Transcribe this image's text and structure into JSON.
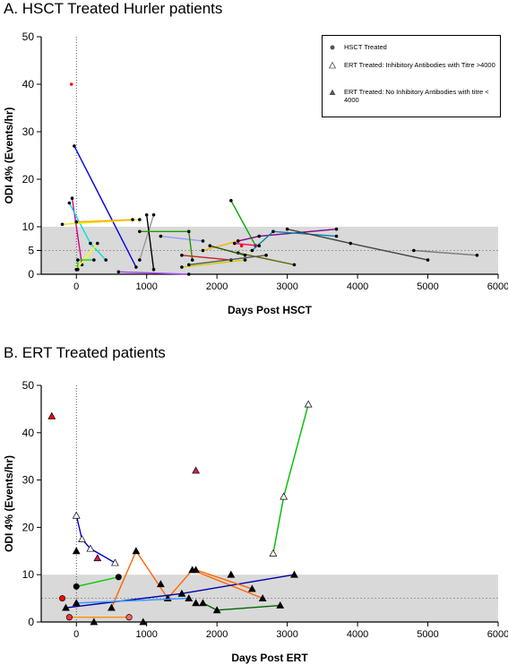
{
  "chart_data": [
    {
      "panel": "A",
      "type": "scatter",
      "title": "A. HSCT Treated Hurler patients",
      "xlabel": "Days Post HSCT",
      "ylabel": "ODI 4% (Events/hr)",
      "xlim": [
        -500,
        6000
      ],
      "ylim": [
        0,
        50
      ],
      "xticks": [
        0,
        1000,
        2000,
        3000,
        4000,
        5000,
        6000
      ],
      "yticks": [
        0,
        5,
        10,
        20,
        30,
        40,
        50
      ],
      "normal_band": [
        0,
        10
      ],
      "reference_line_y": 5,
      "vertical_reference_x": 0,
      "legend": [
        "HSCT Treated",
        "ERT Treated:  Inhibitory Antibodies with Titre >4000",
        "ERT Treated: No Inhibitory Antibodies with titre < 4000"
      ],
      "series": [
        {
          "color": "#0000dd",
          "points": [
            [
              -30,
              27
            ],
            [
              850,
              1.5
            ]
          ]
        },
        {
          "color": "#dd0088",
          "points": [
            [
              -60,
              16
            ],
            [
              80,
              2
            ]
          ]
        },
        {
          "color": "#00e0e0",
          "points": [
            [
              -100,
              15
            ],
            [
              200,
              6.5
            ],
            [
              420,
              3
            ]
          ]
        },
        {
          "color": "#eeee00",
          "points": [
            [
              -200,
              10.5
            ],
            [
              900,
              11.5
            ]
          ]
        },
        {
          "color": "#ffa500",
          "points": [
            [
              0,
              11
            ],
            [
              800,
              11.5
            ]
          ]
        },
        {
          "color": "#ffff00",
          "points": [
            [
              0,
              1
            ],
            [
              300,
              6.5
            ]
          ]
        },
        {
          "color": "#aa44ff",
          "points": [
            [
              600,
              0.5
            ],
            [
              1600,
              0
            ]
          ]
        },
        {
          "color": "#00dd00",
          "points": [
            [
              20,
              1
            ],
            [
              20,
              3
            ],
            [
              250,
              3
            ]
          ]
        },
        {
          "color": "#999999",
          "points": [
            [
              900,
              3
            ],
            [
              1100,
              12.5
            ]
          ]
        },
        {
          "color": "#000000",
          "points": [
            [
              1000,
              12.5
            ],
            [
              1100,
              1
            ]
          ]
        },
        {
          "color": "#cccc00",
          "points": [
            [
              1500,
              1.5
            ],
            [
              2400,
              3
            ]
          ]
        },
        {
          "color": "#9999ff",
          "points": [
            [
              1200,
              8
            ],
            [
              1800,
              7
            ]
          ]
        },
        {
          "color": "#1e9900",
          "points": [
            [
              900,
              9
            ],
            [
              1600,
              9
            ],
            [
              1650,
              3
            ]
          ]
        },
        {
          "color": "#cc2222",
          "points": [
            [
              1500,
              4
            ],
            [
              2200,
              3
            ]
          ]
        },
        {
          "color": "#00aa00",
          "points": [
            [
              2200,
              15.5
            ],
            [
              2550,
              6
            ]
          ]
        },
        {
          "color": "#880088",
          "points": [
            [
              2300,
              7
            ],
            [
              2600,
              8
            ],
            [
              3700,
              9.5
            ]
          ]
        },
        {
          "color": "#0088aa",
          "points": [
            [
              2500,
              5
            ],
            [
              2800,
              9
            ],
            [
              3700,
              8
            ]
          ]
        },
        {
          "color": "#ffaa00",
          "points": [
            [
              1800,
              5
            ],
            [
              2300,
              7
            ]
          ]
        },
        {
          "color": "#ff0066",
          "points": [
            [
              2250,
              6.5
            ],
            [
              2600,
              6
            ]
          ]
        },
        {
          "color": "#444444",
          "points": [
            [
              3000,
              9.5
            ],
            [
              3900,
              6.5
            ],
            [
              5000,
              3
            ]
          ]
        },
        {
          "color": "#777777",
          "points": [
            [
              4800,
              5
            ],
            [
              5700,
              4
            ]
          ]
        },
        {
          "color": "#666600",
          "points": [
            [
              2300,
              4.5
            ],
            [
              3100,
              2
            ]
          ]
        },
        {
          "color": "#555555",
          "points": [
            [
              1600,
              2
            ],
            [
              2700,
              4
            ]
          ]
        },
        {
          "color": "#225500",
          "points": [
            [
              1900,
              6
            ],
            [
              2400,
              4
            ]
          ]
        }
      ],
      "extra_points": [
        {
          "x": -70,
          "y": 40,
          "color": "#ff0000"
        },
        {
          "x": 2350,
          "y": 6,
          "color": "#ff0000"
        }
      ]
    },
    {
      "panel": "B",
      "type": "scatter",
      "title": "B. ERT Treated patients",
      "xlabel": "Days Post ERT",
      "ylabel": "ODI 4% (Events/hr)",
      "xlim": [
        -500,
        6000
      ],
      "ylim": [
        0,
        50
      ],
      "xticks": [
        0,
        1000,
        2000,
        3000,
        4000,
        5000,
        6000
      ],
      "yticks": [
        0,
        10,
        20,
        30,
        40,
        50
      ],
      "normal_band": [
        0,
        10
      ],
      "reference_line_y": 5,
      "vertical_reference_x": 0,
      "series": [
        {
          "color": "#0000cc",
          "marker": "open-triangle",
          "points": [
            [
              0,
              22.5
            ],
            [
              80,
              17.5
            ],
            [
              200,
              15.5
            ],
            [
              550,
              12.5
            ]
          ]
        },
        {
          "color": "#00bb00",
          "marker": "open-triangle",
          "points": [
            [
              2800,
              14.5
            ],
            [
              2950,
              26.5
            ],
            [
              3300,
              46
            ]
          ]
        },
        {
          "color": "#00cc00",
          "marker": "circle",
          "points": [
            [
              0,
              7.5
            ],
            [
              600,
              9.5
            ]
          ]
        },
        {
          "color": "#ff8c00",
          "marker": "circle",
          "points": [
            [
              -100,
              1
            ],
            [
              750,
              1
            ]
          ]
        },
        {
          "color": "#ff6600",
          "marker": "triangle",
          "points": [
            [
              500,
              3
            ],
            [
              850,
              15
            ],
            [
              1300,
              5
            ],
            [
              1650,
              11
            ],
            [
              2650,
              5
            ]
          ]
        },
        {
          "color": "#0000aa",
          "marker": "triangle",
          "points": [
            [
              -150,
              3
            ],
            [
              1500,
              6
            ],
            [
              3100,
              10
            ]
          ]
        },
        {
          "color": "#3399ff",
          "marker": "triangle",
          "points": [
            [
              0,
              4
            ],
            [
              1600,
              5
            ]
          ]
        },
        {
          "color": "#006600",
          "marker": "triangle",
          "points": [
            [
              1800,
              4
            ],
            [
              2000,
              2.5
            ],
            [
              2900,
              3.5
            ]
          ]
        },
        {
          "color": "#ff6600",
          "marker": "triangle",
          "points": [
            [
              1700,
              11
            ],
            [
              2500,
              7
            ]
          ]
        }
      ],
      "extra_points": [
        {
          "x": -350,
          "y": 43.5,
          "color": "#ff0000",
          "marker": "triangle"
        },
        {
          "x": 1700,
          "y": 32,
          "color": "#cc2266",
          "marker": "triangle"
        },
        {
          "x": 300,
          "y": 13.5,
          "color": "#cc2266",
          "marker": "triangle"
        },
        {
          "x": -200,
          "y": 5,
          "color": "#ff0000",
          "marker": "circle"
        },
        {
          "x": -100,
          "y": 1,
          "color": "#ff3333",
          "marker": "circle"
        },
        {
          "x": 750,
          "y": 1,
          "color": "#ff6666",
          "marker": "circle"
        },
        {
          "x": 0,
          "y": 15,
          "color": "#000000",
          "marker": "triangle"
        },
        {
          "x": 1200,
          "y": 8,
          "color": "#000000",
          "marker": "triangle"
        },
        {
          "x": 1700,
          "y": 4,
          "color": "#000000",
          "marker": "triangle"
        },
        {
          "x": 2200,
          "y": 10,
          "color": "#000000",
          "marker": "triangle"
        },
        {
          "x": 950,
          "y": 0,
          "color": "#000000",
          "marker": "triangle"
        },
        {
          "x": 250,
          "y": 0,
          "color": "#000000",
          "marker": "triangle"
        }
      ]
    }
  ]
}
